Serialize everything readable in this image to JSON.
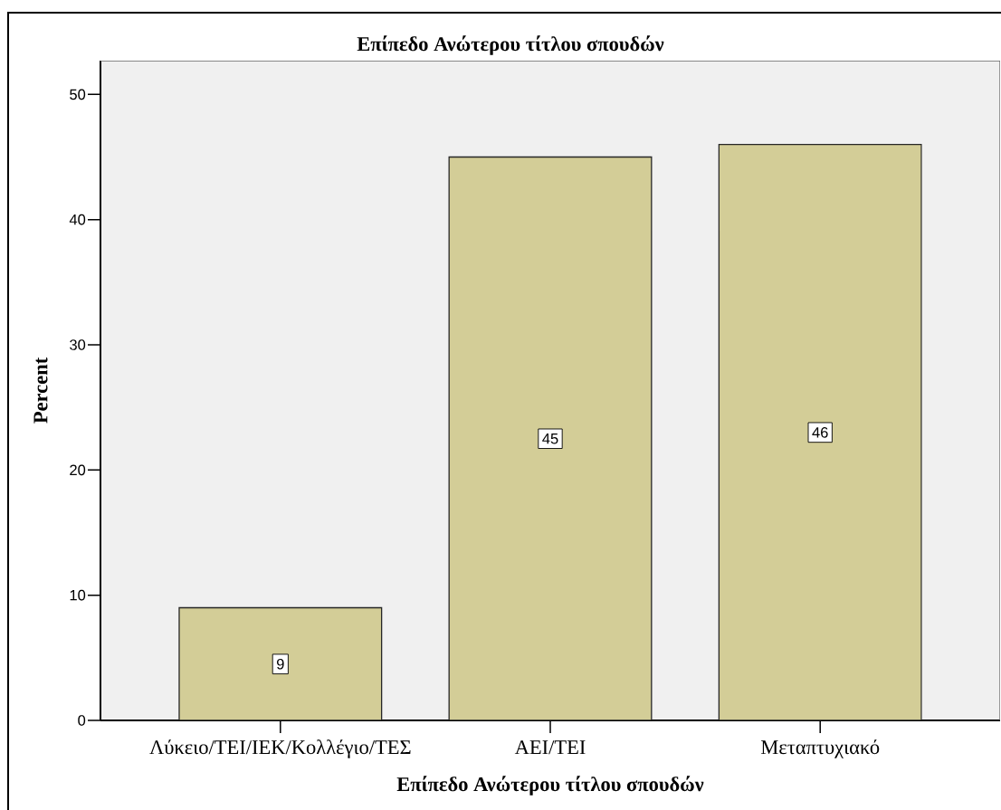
{
  "chart_data": {
    "type": "bar",
    "title": "Επίπεδο Ανώτερου τίτλου σπουδών",
    "xlabel": "Επίπεδο Ανώτερου τίτλου σπουδών",
    "ylabel": "Percent",
    "categories": [
      "Λύκειο/ΤΕΙ/ΙΕΚ/Κολλέγιο/ΤΕΣ",
      "ΑΕΙ/ΤΕΙ",
      "Μεταπτυχιακό"
    ],
    "values": [
      9,
      45,
      46
    ],
    "color": "#d3cd97",
    "ylim": [
      0,
      52.7
    ],
    "yticks": [
      0,
      10,
      20,
      30,
      40,
      50
    ],
    "data_labels": true
  }
}
